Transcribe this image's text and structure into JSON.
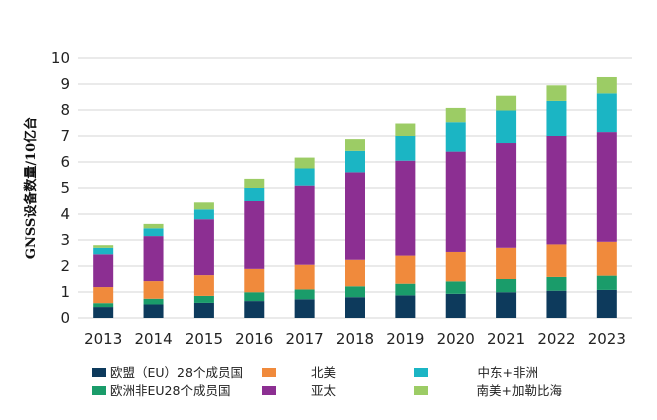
{
  "chart_data": {
    "type": "bar",
    "stacked": true,
    "ylabel": "GNSS设备数量/10亿台",
    "ylim": [
      0,
      10
    ],
    "yticks": [
      "0",
      "1",
      "2",
      "3",
      "4",
      "5",
      "6",
      "7",
      "8",
      "9",
      "10"
    ],
    "grid": true,
    "legend_position": "bottom",
    "categories": [
      "2013",
      "2014",
      "2015",
      "2016",
      "2017",
      "2018",
      "2019",
      "2020",
      "2021",
      "2022",
      "2023"
    ],
    "series": [
      {
        "name": "欧盟（EU）28个成员国",
        "color": "#0d3a5c",
        "values": [
          0.42,
          0.52,
          0.58,
          0.65,
          0.72,
          0.8,
          0.87,
          0.93,
          0.99,
          1.05,
          1.08
        ]
      },
      {
        "name": "欧洲非EU28个成员国",
        "color": "#1a9c6a",
        "values": [
          0.15,
          0.22,
          0.27,
          0.34,
          0.38,
          0.42,
          0.45,
          0.48,
          0.51,
          0.53,
          0.55
        ]
      },
      {
        "name": "北美",
        "color": "#f08a3c",
        "values": [
          0.62,
          0.68,
          0.8,
          0.9,
          0.95,
          1.02,
          1.08,
          1.13,
          1.2,
          1.25,
          1.3
        ]
      },
      {
        "name": "亚太",
        "color": "#8c2f92",
        "values": [
          1.26,
          1.73,
          2.15,
          2.61,
          3.04,
          3.36,
          3.65,
          3.86,
          4.03,
          4.17,
          4.22
        ]
      },
      {
        "name": "中东+非洲",
        "color": "#1bb5c4",
        "values": [
          0.25,
          0.3,
          0.38,
          0.5,
          0.66,
          0.83,
          0.95,
          1.13,
          1.25,
          1.35,
          1.49
        ]
      },
      {
        "name": "南美+加勒比海",
        "color": "#9ccc65",
        "values": [
          0.1,
          0.17,
          0.27,
          0.35,
          0.42,
          0.45,
          0.48,
          0.55,
          0.57,
          0.6,
          0.63
        ]
      }
    ]
  }
}
